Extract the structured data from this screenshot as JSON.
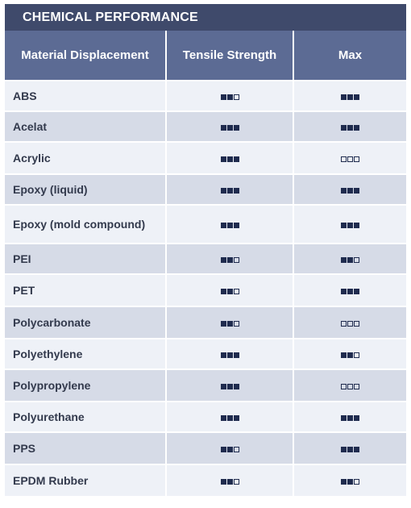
{
  "title": "CHEMICAL PERFORMANCE",
  "headers": [
    "Material Displacement",
    "Tensile Strength",
    "Max"
  ],
  "rating_scale_max": 3,
  "colors": {
    "title_bg": "#3f4a6b",
    "header_bg": "#5c6b94",
    "row_light": "#eef1f7",
    "row_dark": "#d6dbe7",
    "square": "#1f2b4e"
  },
  "rows": [
    {
      "material": "ABS",
      "tensile_strength": 2,
      "max": 3
    },
    {
      "material": "Acelat",
      "tensile_strength": 3,
      "max": 3
    },
    {
      "material": "Acrylic",
      "tensile_strength": 3,
      "max": 0
    },
    {
      "material": "Epoxy (liquid)",
      "tensile_strength": 3,
      "max": 3
    },
    {
      "material": "Epoxy (mold compound)",
      "tensile_strength": 3,
      "max": 3
    },
    {
      "material": "PEI",
      "tensile_strength": 2,
      "max": 2
    },
    {
      "material": "PET",
      "tensile_strength": 2,
      "max": 3
    },
    {
      "material": "Polycarbonate",
      "tensile_strength": 2,
      "max": 0
    },
    {
      "material": "Polyethylene",
      "tensile_strength": 3,
      "max": 2
    },
    {
      "material": "Polypropylene",
      "tensile_strength": 3,
      "max": 0
    },
    {
      "material": "Polyurethane",
      "tensile_strength": 3,
      "max": 3
    },
    {
      "material": "PPS",
      "tensile_strength": 2,
      "max": 3
    },
    {
      "material": "EPDM Rubber",
      "tensile_strength": 2,
      "max": 2
    }
  ]
}
